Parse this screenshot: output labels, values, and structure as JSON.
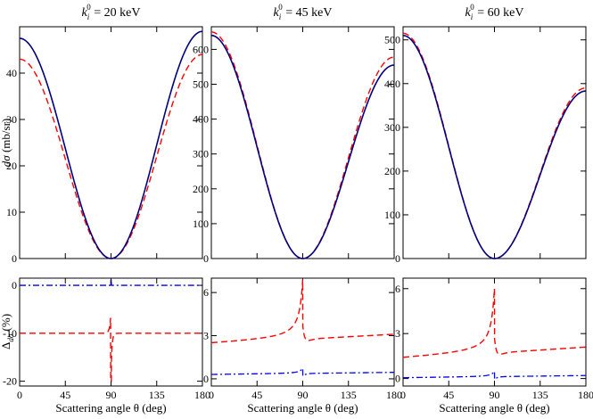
{
  "chart_data": {
    "type": "line",
    "x_label_text": "Scattering angle θ (deg)",
    "x_ticks": [
      "0",
      "45",
      "90",
      "135",
      "180"
    ],
    "xlim": [
      0,
      180
    ],
    "series_styles": {
      "exact": {
        "color": "#000080",
        "dash": "solid"
      },
      "approx": {
        "color": "#ff0000",
        "dash": "dashed"
      },
      "delta_blue": {
        "color": "#0000ff",
        "dash": "dashdot"
      }
    },
    "top_ylabel": {
      "main": "dσ",
      "units": "(mb/sr)"
    },
    "bottom_ylabel": {
      "main": "Δ",
      "sub": "dσ",
      "units": "(%)"
    },
    "panels": [
      {
        "title": {
          "sym": "k",
          "sub": "i",
          "sup": "0",
          "value": "= 20 keV"
        },
        "top": {
          "ylim": [
            0,
            50
          ],
          "y_ticks": [
            "0",
            "10",
            "20",
            "30",
            "40"
          ],
          "y_tick_values": [
            0,
            10,
            20,
            30,
            40
          ],
          "exact_amp": 47.5,
          "exact_end": 49.0,
          "approx_amp": 43.0,
          "approx_end": 44.0
        },
        "bottom": {
          "ylim": [
            -21,
            1.5
          ],
          "y_ticks": [
            "-20",
            "-10",
            "0"
          ],
          "y_tick_values": [
            -20,
            -10,
            0
          ],
          "red_base": -10.0,
          "red_min": -20,
          "red_max": -5.5,
          "blue_base": 0.0
        }
      },
      {
        "title": {
          "sym": "k",
          "sub": "i",
          "sup": "0",
          "value": "= 45 keV"
        },
        "top": {
          "ylim": [
            0,
            665
          ],
          "y_ticks": [
            "0",
            "100",
            "200",
            "300",
            "400",
            "500",
            "600"
          ],
          "y_tick_values": [
            0,
            100,
            200,
            300,
            400,
            500,
            600
          ],
          "exact_amp": 640,
          "exact_end": 555,
          "approx_amp": 650,
          "approx_end": 578
        },
        "bottom": {
          "ylim": [
            -0.5,
            7.0
          ],
          "y_ticks": [
            "0",
            "3",
            "6"
          ],
          "y_tick_values": [
            0,
            3,
            6
          ],
          "red_start": 2.4,
          "red_end": 3.1,
          "red_peak": 6.9,
          "blue_start": 0.3,
          "blue_end": 0.45
        }
      },
      {
        "title": {
          "sym": "k",
          "sub": "i",
          "sup": "0",
          "value": "= 60 keV"
        },
        "top": {
          "ylim": [
            0,
            530
          ],
          "y_ticks": [
            "0",
            "100",
            "200",
            "300",
            "400",
            "500"
          ],
          "y_tick_values": [
            0,
            100,
            200,
            300,
            400,
            500
          ],
          "exact_amp": 510,
          "exact_end": 383,
          "approx_amp": 515,
          "approx_end": 390
        },
        "bottom": {
          "ylim": [
            -0.5,
            6.7
          ],
          "y_ticks": [
            "0",
            "3",
            "6"
          ],
          "y_tick_values": [
            0,
            3,
            6
          ],
          "red_start": 1.3,
          "red_end": 2.1,
          "red_peak": 6.0,
          "blue_start": 0.05,
          "blue_end": 0.2
        }
      }
    ]
  }
}
